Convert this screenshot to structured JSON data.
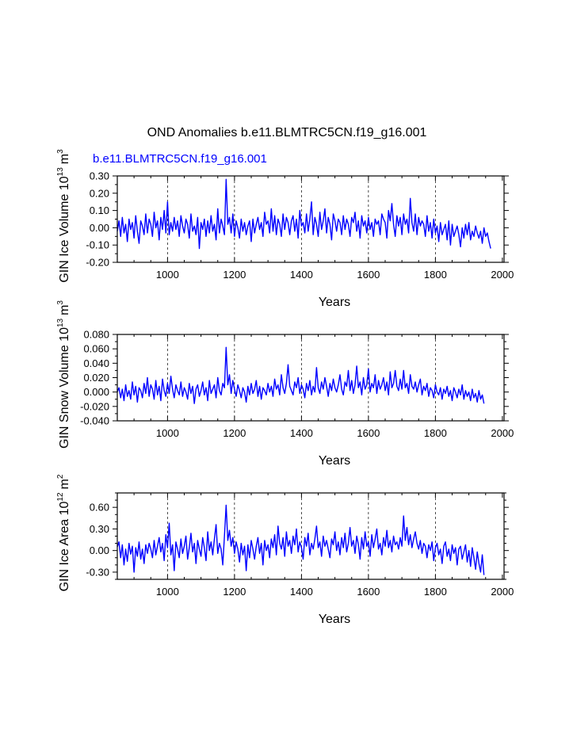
{
  "figure": {
    "title": "OND Anomalies b.e11.BLMTRC5CN.f19_g16.001",
    "case_label": "b.e11.BLMTRC5CN.f19_g16.001",
    "case_label_color": "#0000ff"
  },
  "colors": {
    "series": "#0000ff",
    "axis": "#000000",
    "grid": "#000000",
    "background": "#ffffff"
  },
  "chart_data": [
    {
      "type": "line",
      "title": "",
      "xlabel": "Years",
      "ylabel": "GIN Ice Volume 10",
      "ylabel_sup": "13",
      "ylabel_unit": "m",
      "ylabel_unit_sup": "3",
      "xlim": [
        850,
        2005
      ],
      "ylim": [
        -0.2,
        0.3
      ],
      "xticks": [
        1000,
        1200,
        1400,
        1600,
        1800,
        2000
      ],
      "xtick_labels": [
        "1000",
        "1200",
        "1400",
        "1600",
        "1800",
        "2000"
      ],
      "yticks": [
        -0.2,
        -0.1,
        0.0,
        0.1,
        0.2,
        0.3
      ],
      "ytick_labels": [
        "-0.20",
        "-0.10",
        "0.00",
        "0.10",
        "0.20",
        "0.30"
      ],
      "grid": "vertical dashed at 1000, 1200, 1400, 1600, 1800",
      "series": [
        {
          "name": "GIN Ice Volume anomaly",
          "x_start": 850,
          "x_step": 5,
          "values": [
            -0.02,
            0.04,
            -0.05,
            0.06,
            -0.03,
            0.02,
            -0.08,
            0.05,
            -0.01,
            0.03,
            -0.06,
            0.07,
            -0.02,
            -0.09,
            0.04,
            0.01,
            -0.04,
            0.08,
            -0.03,
            0.05,
            0.02,
            -0.05,
            0.09,
            0.0,
            0.04,
            -0.07,
            0.06,
            -0.01,
            0.1,
            -0.03,
            0.15,
            -0.04,
            0.03,
            -0.02,
            0.06,
            -0.01,
            0.04,
            -0.05,
            0.07,
            0.01,
            -0.03,
            0.05,
            0.02,
            -0.06,
            0.08,
            -0.02,
            0.01,
            -0.04,
            0.06,
            -0.12,
            0.03,
            -0.01,
            0.05,
            -0.05,
            0.04,
            -0.03,
            0.07,
            -0.02,
            0.02,
            -0.07,
            0.11,
            -0.03,
            0.05,
            0.01,
            -0.04,
            0.28,
            0.02,
            0.06,
            -0.03,
            0.08,
            -0.05,
            0.04,
            0.0,
            -0.06,
            0.05,
            -0.02,
            0.03,
            -0.04,
            0.01,
            0.04,
            -0.08,
            0.05,
            -0.03,
            0.02,
            0.06,
            -0.01,
            0.03,
            -0.05,
            0.09,
            0.02,
            0.04,
            -0.03,
            0.11,
            -0.02,
            0.07,
            -0.04,
            0.05,
            0.02,
            -0.05,
            0.08,
            -0.01,
            0.06,
            0.03,
            -0.04,
            0.04,
            0.07,
            -0.02,
            0.05,
            -0.06,
            0.1,
            0.01,
            0.03,
            -0.03,
            0.08,
            -0.02,
            0.05,
            0.15,
            -0.04,
            0.06,
            0.02,
            -0.05,
            0.09,
            -0.01,
            0.04,
            0.11,
            -0.03,
            0.06,
            0.02,
            -0.07,
            0.08,
            0.04,
            -0.02,
            0.05,
            0.03,
            -0.04,
            0.07,
            -0.01,
            0.05,
            0.02,
            -0.05,
            0.06,
            0.03,
            0.09,
            -0.02,
            0.04,
            -0.06,
            0.07,
            0.01,
            0.04,
            -0.03,
            0.06,
            -0.01,
            0.03,
            -0.05,
            0.05,
            0.02,
            0.04,
            -0.04,
            0.08,
            0.05,
            0.03,
            -0.06,
            0.1,
            0.04,
            0.14,
            0.02,
            -0.05,
            0.07,
            0.01,
            0.06,
            -0.04,
            0.08,
            0.02,
            0.05,
            -0.03,
            0.17,
            0.03,
            -0.02,
            0.08,
            -0.04,
            0.06,
            0.01,
            0.04,
            0.02,
            -0.05,
            0.07,
            -0.02,
            0.03,
            -0.06,
            0.05,
            -0.03,
            0.01,
            -0.08,
            0.03,
            -0.04,
            -0.01,
            0.02,
            -0.07,
            0.04,
            -0.1,
            0.02,
            -0.05,
            -0.02,
            0.01,
            -0.04,
            -0.11,
            0.0,
            -0.06,
            0.02,
            -0.04,
            0.03,
            -0.07,
            -0.02,
            -0.05,
            0.01,
            -0.03,
            -0.06,
            -0.02,
            -0.09,
            0.0,
            -0.05,
            -0.03,
            -0.08,
            -0.12
          ]
        }
      ]
    },
    {
      "type": "line",
      "title": "",
      "xlabel": "Years",
      "ylabel": "GIN Snow Volume 10",
      "ylabel_sup": "13",
      "ylabel_unit": "m",
      "ylabel_unit_sup": "3",
      "xlim": [
        850,
        2005
      ],
      "ylim": [
        -0.04,
        0.08
      ],
      "xticks": [
        1000,
        1200,
        1400,
        1600,
        1800,
        2000
      ],
      "xtick_labels": [
        "1000",
        "1200",
        "1400",
        "1600",
        "1800",
        "2000"
      ],
      "yticks": [
        -0.04,
        -0.02,
        0.0,
        0.02,
        0.04,
        0.06,
        0.08
      ],
      "ytick_labels": [
        "-0.040",
        "-0.020",
        "0.000",
        "0.020",
        "0.040",
        "0.060",
        "0.080"
      ],
      "grid": "vertical dashed at 1000, 1200, 1400, 1600, 1800",
      "series": [
        {
          "name": "GIN Snow Volume anomaly",
          "x_start": 850,
          "x_step": 5,
          "values": [
            0.0,
            0.006,
            -0.008,
            0.004,
            -0.012,
            0.01,
            -0.006,
            0.002,
            -0.01,
            0.014,
            -0.004,
            0.008,
            -0.014,
            0.006,
            0.002,
            -0.008,
            0.012,
            -0.002,
            0.02,
            -0.006,
            0.01,
            0.004,
            -0.01,
            0.016,
            -0.004,
            0.008,
            -0.012,
            0.018,
            0.002,
            -0.006,
            0.012,
            -0.002,
            0.022,
            0.004,
            -0.008,
            0.01,
            0.002,
            -0.004,
            0.014,
            -0.006,
            0.006,
            0.0,
            -0.01,
            0.012,
            -0.002,
            0.008,
            -0.016,
            0.004,
            0.01,
            -0.006,
            0.002,
            0.014,
            -0.004,
            0.006,
            -0.012,
            0.016,
            -0.002,
            0.004,
            0.01,
            -0.008,
            0.02,
            0.002,
            -0.004,
            0.012,
            0.006,
            0.062,
            0.01,
            0.024,
            -0.002,
            0.016,
            0.004,
            -0.006,
            0.01,
            0.002,
            -0.008,
            0.006,
            0.0,
            -0.014,
            0.008,
            -0.004,
            0.012,
            -0.002,
            0.004,
            0.016,
            -0.006,
            0.008,
            -0.01,
            0.006,
            0.002,
            -0.004,
            0.012,
            0.0,
            0.008,
            -0.006,
            0.018,
            0.004,
            0.01,
            -0.004,
            0.024,
            0.006,
            -0.002,
            0.012,
            0.038,
            0.008,
            0.002,
            -0.004,
            0.014,
            0.006,
            0.02,
            -0.002,
            0.01,
            0.004,
            -0.008,
            0.012,
            0.002,
            0.016,
            -0.004,
            0.008,
            0.0,
            0.034,
            0.006,
            -0.002,
            0.014,
            0.004,
            0.02,
            0.008,
            -0.006,
            0.012,
            0.002,
            0.018,
            0.006,
            0.0,
            0.01,
            0.024,
            0.004,
            -0.004,
            0.014,
            0.008,
            0.03,
            0.002,
            0.016,
            -0.002,
            0.01,
            0.036,
            0.006,
            0.014,
            -0.004,
            0.02,
            0.004,
            0.01,
            0.032,
            0.0,
            0.012,
            0.006,
            0.024,
            -0.002,
            0.016,
            0.004,
            0.01,
            0.02,
            0.002,
            0.014,
            -0.004,
            0.028,
            0.006,
            0.012,
            0.03,
            0.008,
            0.002,
            0.018,
            0.004,
            0.03,
            0.006,
            0.012,
            -0.002,
            0.024,
            0.008,
            0.004,
            0.014,
            0.0,
            0.01,
            0.018,
            -0.004,
            0.008,
            0.002,
            0.012,
            -0.006,
            0.006,
            0.002,
            -0.008,
            0.01,
            0.0,
            -0.004,
            0.006,
            -0.01,
            0.004,
            -0.002,
            0.008,
            -0.006,
            0.002,
            -0.012,
            0.006,
            0.0,
            -0.008,
            0.004,
            -0.004,
            0.01,
            -0.01,
            0.002,
            -0.006,
            0.0,
            -0.012,
            0.004,
            -0.008,
            -0.002,
            -0.014,
            0.002,
            -0.01,
            -0.004,
            -0.016
          ]
        }
      ]
    },
    {
      "type": "line",
      "title": "",
      "xlabel": "Years",
      "ylabel": "GIN Ice Area 10",
      "ylabel_sup": "12",
      "ylabel_unit": "m",
      "ylabel_unit_sup": "2",
      "xlim": [
        850,
        2005
      ],
      "ylim": [
        -0.4,
        0.8
      ],
      "xticks": [
        1000,
        1200,
        1400,
        1600,
        1800,
        2000
      ],
      "xtick_labels": [
        "1000",
        "1200",
        "1400",
        "1600",
        "1800",
        "2000"
      ],
      "yticks": [
        -0.3,
        0.0,
        0.3,
        0.6
      ],
      "ytick_labels": [
        "-0.30",
        "0.00",
        "0.30",
        "0.60"
      ],
      "grid": "vertical dashed at 1000, 1200, 1400, 1600, 1800",
      "series": [
        {
          "name": "GIN Ice Area anomaly",
          "x_start": 850,
          "x_step": 5,
          "values": [
            0.05,
            0.12,
            -0.1,
            0.08,
            -0.2,
            0.02,
            -0.15,
            0.1,
            -0.05,
            0.06,
            -0.3,
            0.04,
            -0.08,
            0.12,
            -0.12,
            0.02,
            -0.18,
            0.08,
            -0.04,
            0.1,
            0.02,
            -0.1,
            0.14,
            -0.06,
            0.06,
            0.18,
            -0.02,
            0.1,
            -0.14,
            0.22,
            0.04,
            0.38,
            -0.06,
            0.08,
            -0.28,
            0.12,
            0.02,
            -0.1,
            0.16,
            -0.04,
            0.06,
            0.2,
            -0.12,
            0.04,
            0.24,
            -0.02,
            0.1,
            -0.18,
            0.14,
            0.02,
            -0.08,
            0.18,
            0.04,
            -0.14,
            0.26,
            0.0,
            0.12,
            -0.06,
            0.16,
            0.36,
            -0.04,
            0.1,
            0.02,
            -0.2,
            0.2,
            0.63,
            0.14,
            0.28,
            0.06,
            0.18,
            -0.04,
            0.12,
            0.02,
            -0.16,
            0.1,
            -0.06,
            0.06,
            -0.28,
            0.08,
            -0.1,
            0.14,
            0.02,
            -0.12,
            0.06,
            0.18,
            -0.04,
            0.1,
            -0.2,
            0.14,
            0.0,
            0.08,
            -0.1,
            0.16,
            0.04,
            0.22,
            -0.06,
            0.34,
            0.1,
            0.02,
            0.18,
            -0.08,
            0.26,
            0.06,
            0.14,
            -0.04,
            0.2,
            0.08,
            0.3,
            -0.02,
            0.12,
            0.04,
            -0.12,
            0.18,
            0.06,
            0.24,
            -0.06,
            0.1,
            0.02,
            0.16,
            0.34,
            0.04,
            0.12,
            -0.08,
            0.2,
            0.06,
            0.14,
            0.02,
            -0.1,
            0.16,
            0.08,
            0.26,
            0.0,
            0.12,
            -0.06,
            0.18,
            0.04,
            0.24,
            -0.02,
            0.1,
            0.32,
            0.06,
            0.14,
            -0.04,
            0.2,
            0.08,
            -0.12,
            0.18,
            0.02,
            0.26,
            0.06,
            0.12,
            -0.08,
            0.22,
            0.04,
            0.16,
            0.3,
            0.02,
            0.1,
            -0.06,
            0.18,
            0.06,
            0.28,
            0.04,
            0.14,
            -0.02,
            0.2,
            0.08,
            0.12,
            0.02,
            0.18,
            0.06,
            0.48,
            0.14,
            0.32,
            0.08,
            0.22,
            0.04,
            0.16,
            0.26,
            0.1,
            0.02,
            0.14,
            -0.04,
            0.1,
            0.06,
            -0.1,
            0.08,
            0.0,
            0.12,
            -0.14,
            0.04,
            0.1,
            -0.06,
            0.02,
            -0.18,
            0.06,
            0.12,
            -0.08,
            0.02,
            -0.14,
            0.08,
            -0.04,
            0.04,
            -0.2,
            0.02,
            0.06,
            -0.12,
            -0.02,
            0.08,
            -0.16,
            0.0,
            -0.22,
            0.04,
            -0.1,
            -0.26,
            -0.02,
            -0.18,
            -0.3,
            -0.06,
            -0.34
          ]
        }
      ]
    }
  ]
}
